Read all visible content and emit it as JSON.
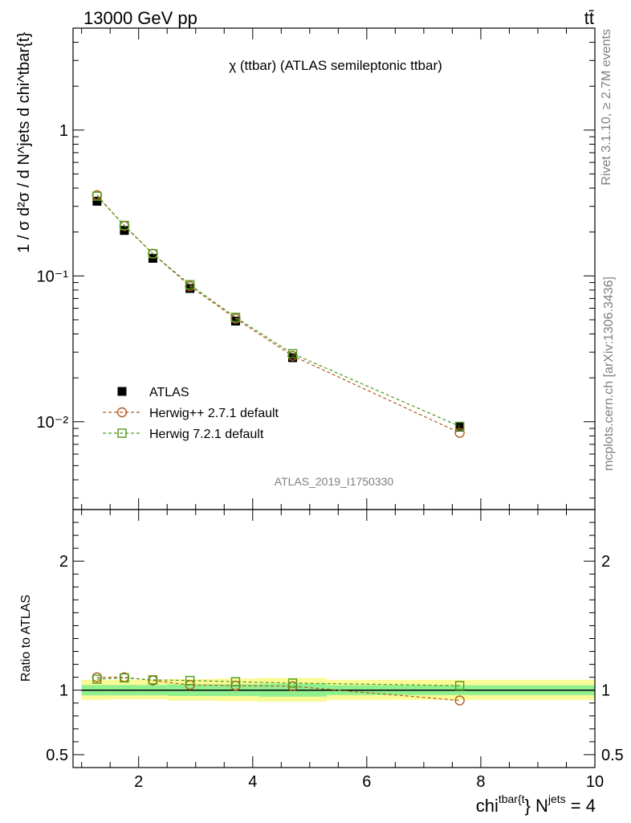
{
  "header": {
    "left": "13000 GeV pp",
    "right": "tt̄"
  },
  "side": {
    "rivet": "Rivet 3.1.10, ≥ 2.7M events",
    "mcplots": "mcplots.cern.ch [arXiv:1306.3436]"
  },
  "chart_data": [
    {
      "type": "scatter",
      "panel": "main",
      "title": "χ (ttbar) (ATLAS semileptonic ttbar)",
      "watermark": "ATLAS_2019_I1750330",
      "ylabel": "1 / σ d²σ / d N^jets d chi^tbar{t}",
      "yscale": "log",
      "xlim": [
        0.85,
        10.0
      ],
      "ylim": [
        0.0025,
        5.0
      ],
      "yticks": [
        {
          "value": 1,
          "label": "1"
        },
        {
          "value": 0.1,
          "label": "10⁻¹"
        },
        {
          "value": 0.01,
          "label": "10⁻²"
        }
      ],
      "legend_position": "bottom-left",
      "x": [
        1.27,
        1.75,
        2.25,
        2.9,
        3.7,
        4.7,
        7.63
      ],
      "bin_edges": [
        1.0,
        1.5,
        2.0,
        2.5,
        3.3,
        4.1,
        5.3,
        10.0
      ],
      "series": [
        {
          "name": "ATLAS",
          "color": "#000000",
          "marker": "filled-square",
          "line": "none",
          "values": [
            0.325,
            0.205,
            0.132,
            0.082,
            0.049,
            0.0275,
            0.0092
          ]
        },
        {
          "name": "Herwig++ 2.7.1 default",
          "color": "#b35a1f",
          "marker": "open-circle",
          "line": "dashed",
          "values": [
            0.358,
            0.22,
            0.142,
            0.085,
            0.051,
            0.0283,
            0.0084
          ]
        },
        {
          "name": "Herwig 7.2.1 default",
          "color": "#4d9a1a",
          "marker": "open-square",
          "line": "dashed",
          "values": [
            0.352,
            0.222,
            0.142,
            0.087,
            0.052,
            0.0293,
            0.0093
          ]
        }
      ]
    },
    {
      "type": "scatter",
      "panel": "ratio",
      "ylabel": "Ratio to ATLAS",
      "xlabel_main": "chi",
      "xlabel_sup1": "tbar{t",
      "xlabel_mid": "} N",
      "xlabel_sup2": "jets",
      "xlabel_end": " = 4",
      "xlim": [
        0.85,
        10.0
      ],
      "ylim": [
        0.4,
        2.4
      ],
      "xticks": [
        2,
        4,
        6,
        8,
        10
      ],
      "yticks": [
        {
          "value": 0.5,
          "label": "0.5"
        },
        {
          "value": 1,
          "label": "1"
        },
        {
          "value": 2,
          "label": "2"
        }
      ],
      "reference_line": 1.0,
      "band_edges": [
        1.0,
        1.5,
        2.0,
        2.5,
        3.3,
        4.1,
        5.3,
        10.0
      ],
      "band_inner": [
        [
          0.96,
          1.04
        ],
        [
          0.96,
          1.04
        ],
        [
          0.96,
          1.04
        ],
        [
          0.955,
          1.045
        ],
        [
          0.955,
          1.045
        ],
        [
          0.95,
          1.05
        ],
        [
          0.962,
          1.038
        ]
      ],
      "band_outer": [
        [
          0.925,
          1.08
        ],
        [
          0.93,
          1.08
        ],
        [
          0.93,
          1.08
        ],
        [
          0.92,
          1.085
        ],
        [
          0.915,
          1.09
        ],
        [
          0.91,
          1.095
        ],
        [
          0.925,
          1.08
        ]
      ],
      "band_colors": {
        "inner": "#90f090",
        "outer": "#fafa96"
      },
      "x": [
        1.27,
        1.75,
        2.25,
        2.9,
        3.7,
        4.7,
        7.63
      ],
      "series": [
        {
          "name": "Herwig++ 2.7.1 default",
          "color": "#b35a1f",
          "marker": "open-circle",
          "values": [
            1.1,
            1.1,
            1.075,
            1.04,
            1.035,
            1.03,
            0.92
          ]
        },
        {
          "name": "Herwig 7.2.1 default",
          "color": "#4d9a1a",
          "marker": "open-square",
          "values": [
            1.085,
            1.095,
            1.08,
            1.075,
            1.065,
            1.055,
            1.035
          ]
        }
      ]
    }
  ]
}
